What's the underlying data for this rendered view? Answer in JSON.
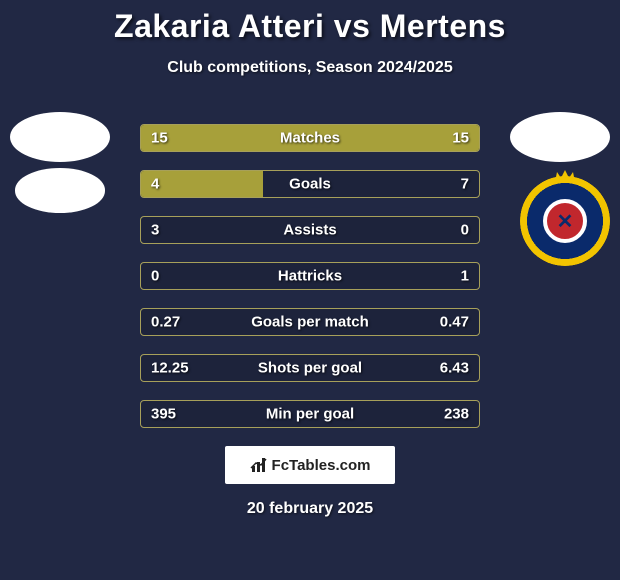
{
  "background_color": "#212844",
  "text_color": "#ffffff",
  "title": "Zakaria Atteri vs Mertens",
  "title_fontsize": 32,
  "subtitle": "Club competitions, Season 2024/2025",
  "subtitle_fontsize": 16,
  "bar_border_color": "#a7a05a",
  "bar_fill_color": "#a7a03a",
  "bar_bg_color": "rgba(0,0,0,0.12)",
  "value_fontsize": 15,
  "rows": [
    {
      "label": "Matches",
      "left": "15",
      "right": "15",
      "left_pct": 50,
      "right_pct": 50
    },
    {
      "label": "Goals",
      "left": "4",
      "right": "7",
      "left_pct": 36,
      "right_pct": 0
    },
    {
      "label": "Assists",
      "left": "3",
      "right": "0",
      "left_pct": 0,
      "right_pct": 0
    },
    {
      "label": "Hattricks",
      "left": "0",
      "right": "1",
      "left_pct": 0,
      "right_pct": 0
    },
    {
      "label": "Goals per match",
      "left": "0.27",
      "right": "0.47",
      "left_pct": 0,
      "right_pct": 0
    },
    {
      "label": "Shots per goal",
      "left": "12.25",
      "right": "6.43",
      "left_pct": 0,
      "right_pct": 0
    },
    {
      "label": "Min per goal",
      "left": "395",
      "right": "238",
      "left_pct": 0,
      "right_pct": 0
    }
  ],
  "logo_text": "FcTables.com",
  "date": "20 february 2025",
  "crest_colors": {
    "outer_ring": "#f2c400",
    "mid": "#0a2a6b",
    "inner": "#c1272d",
    "inner_border": "#ffffff"
  }
}
